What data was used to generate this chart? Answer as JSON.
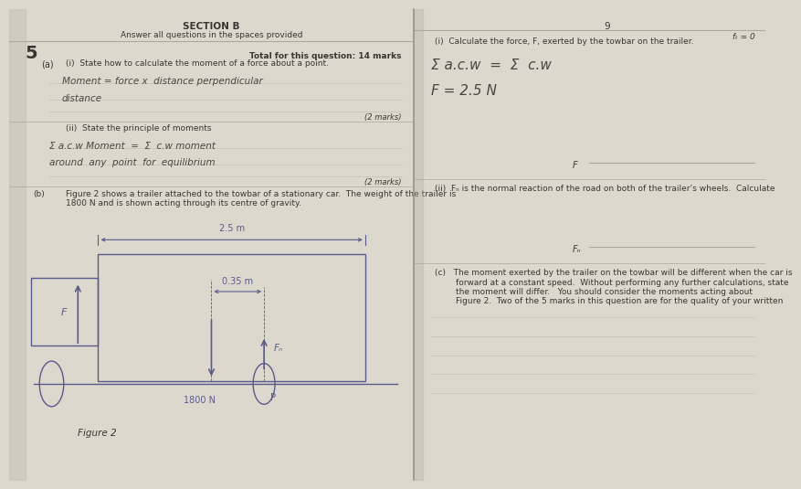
{
  "bg_left": "#ddd8ce",
  "bg_right": "#e8e3d8",
  "page_mid_color": "#e2ddd3",
  "spine_shadow": "#c5bfb4",
  "text_color": "#2a2520",
  "print_color": "#3a3530",
  "hand_color": "#4a4540",
  "diagram_color": "#5a5a8a",
  "line_color": "#b0a898",
  "faint_line": "#c8c0b0",
  "section_b": "SECTION B",
  "answer_subtext": "Answer all questions in the spaces provided",
  "q_num": "5",
  "total_marks_text": "Total for this question: 14 marks",
  "a_i_prompt": "(i)  State how to calculate the moment of a force about a point.",
  "a_label": "(a)",
  "hand_a_i_1": "Moment = force x  distance perpendicular",
  "hand_a_i_2": "distance",
  "marks_2a": "(2 marks)",
  "a_ii_prompt": "(ii)  State the principle of moments",
  "hand_a_ii_1": "Σ a.c.w Moment  =  Σ  c.w moment",
  "hand_a_ii_2": "around  any  point  for  equilibrium",
  "marks_2b": "(2 marks)",
  "b_label": "(b)",
  "b_text1": "Figure 2 shows a trailer attached to the towbar of a stationary car.  The weight of the trailer is",
  "b_text2": "1800 N and is shown acting through its centre of gravity.",
  "fig_25m": "2.5 m",
  "fig_035m": "0.35 m",
  "fig_1800": "1800 N",
  "fig_P": "P",
  "fig_F": "F",
  "fig_Fn": "Fₙ",
  "fig_caption": "Figure 2",
  "right_page_num": "9",
  "right_ft0": "fₜ = 0",
  "right_i_prompt": "(i)  Calculate the force, F, exerted by the towbar on the trailer.",
  "right_hand1": "Σ a.c.w  =  Σ  c.w",
  "right_hand2": "F = 2.5 N",
  "right_F_ans": "F",
  "right_ii_prompt": "(ii)  Fₙ is the normal reaction of the road on both of the trailer’s wheels.  Calculate",
  "right_Fn_ans": "Fₙ",
  "right_c_text1": "(c)   The moment exerted by the trailer on the towbar will be different when the car is",
  "right_c_text2": "forward at a constant speed.  Without performing any further calculations, state",
  "right_c_text3": "the moment will differ.   You should consider the moments acting about",
  "right_c_text4": "Figure 2.  Two of the 5 marks in this question are for the quality of your written",
  "divider": 0.535
}
